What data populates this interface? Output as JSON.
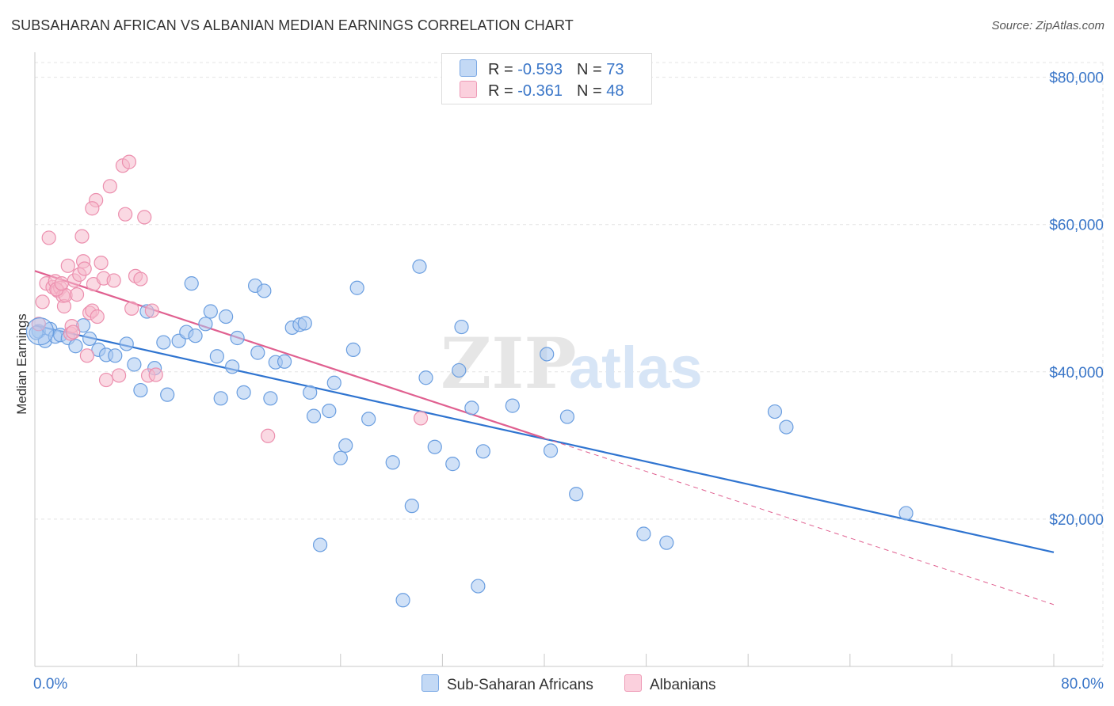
{
  "title": "SUBSAHARAN AFRICAN VS ALBANIAN MEDIAN EARNINGS CORRELATION CHART",
  "source": "Source: ZipAtlas.com",
  "watermark": {
    "zip": "ZIP",
    "atlas": "atlas"
  },
  "colors": {
    "blue_fill": "#a9c8f0",
    "blue_stroke": "#6a9ee0",
    "blue_line": "#2f74d0",
    "pink_fill": "#f6b9cc",
    "pink_stroke": "#ec8fae",
    "pink_line": "#e06090",
    "grid": "#e4e4e4",
    "axis_text": "#3a76c8"
  },
  "legend": {
    "rows": [
      {
        "r_label": "R = ",
        "r_value": "-0.593",
        "n_label": "N = ",
        "n_value": "73",
        "swatch": "blue"
      },
      {
        "r_label": "R = ",
        "r_value": "-0.361",
        "n_label": "N = ",
        "n_value": "48",
        "swatch": "pink"
      }
    ]
  },
  "bottom_legend": [
    "Sub-Saharan Africans",
    "Albanians"
  ],
  "chart_data": {
    "type": "scatter",
    "title": "SUBSAHARAN AFRICAN VS ALBANIAN MEDIAN EARNINGS CORRELATION CHART",
    "xlabel": "",
    "ylabel": "Median Earnings",
    "xlim": [
      0,
      80
    ],
    "ylim": [
      0,
      82000
    ],
    "x_tick_labels": [
      "0.0%",
      "80.0%"
    ],
    "y_ticks": [
      20000,
      40000,
      60000,
      80000
    ],
    "y_tick_labels": [
      "$20,000",
      "$40,000",
      "$60,000",
      "$80,000"
    ],
    "grid": true,
    "legend_placement": "top-center",
    "series": [
      {
        "name": "Sub-Saharan Africans",
        "color": "#6a9ee0",
        "r": -0.593,
        "n": 73,
        "trend": {
          "x": [
            0,
            80
          ],
          "y": [
            46300,
            15500
          ]
        },
        "points": [
          [
            0.3,
            45500
          ],
          [
            0.8,
            44200
          ],
          [
            1.2,
            45800
          ],
          [
            1.6,
            44800
          ],
          [
            2.0,
            45000
          ],
          [
            2.6,
            44600
          ],
          [
            3.2,
            43500
          ],
          [
            3.8,
            46300
          ],
          [
            4.3,
            44500
          ],
          [
            5.0,
            43000
          ],
          [
            5.6,
            42300
          ],
          [
            6.3,
            42200
          ],
          [
            7.2,
            43800
          ],
          [
            7.8,
            41000
          ],
          [
            8.3,
            37500
          ],
          [
            8.8,
            48200
          ],
          [
            9.4,
            40500
          ],
          [
            10.1,
            44000
          ],
          [
            10.4,
            36900
          ],
          [
            11.3,
            44200
          ],
          [
            11.9,
            45400
          ],
          [
            12.3,
            52000
          ],
          [
            12.6,
            44900
          ],
          [
            13.4,
            46500
          ],
          [
            13.8,
            48200
          ],
          [
            14.3,
            42100
          ],
          [
            14.6,
            36400
          ],
          [
            15.0,
            47500
          ],
          [
            15.5,
            40700
          ],
          [
            15.9,
            44600
          ],
          [
            16.4,
            37200
          ],
          [
            17.3,
            51700
          ],
          [
            17.5,
            42600
          ],
          [
            18.0,
            51000
          ],
          [
            18.5,
            36400
          ],
          [
            18.9,
            41300
          ],
          [
            19.6,
            41400
          ],
          [
            20.2,
            46000
          ],
          [
            20.8,
            46400
          ],
          [
            21.2,
            46600
          ],
          [
            21.6,
            37200
          ],
          [
            21.9,
            34000
          ],
          [
            22.4,
            16500
          ],
          [
            23.1,
            34700
          ],
          [
            23.5,
            38500
          ],
          [
            24.0,
            28300
          ],
          [
            24.4,
            30000
          ],
          [
            25.0,
            43000
          ],
          [
            25.3,
            51400
          ],
          [
            26.2,
            33600
          ],
          [
            28.1,
            27700
          ],
          [
            28.9,
            9000
          ],
          [
            29.6,
            21800
          ],
          [
            30.2,
            54300
          ],
          [
            30.7,
            39200
          ],
          [
            31.4,
            29800
          ],
          [
            32.8,
            27500
          ],
          [
            33.3,
            40200
          ],
          [
            33.5,
            46100
          ],
          [
            34.3,
            35100
          ],
          [
            34.8,
            10900
          ],
          [
            35.2,
            29200
          ],
          [
            37.5,
            35400
          ],
          [
            40.2,
            42400
          ],
          [
            40.5,
            29300
          ],
          [
            41.8,
            33900
          ],
          [
            42.5,
            23400
          ],
          [
            47.8,
            18000
          ],
          [
            49.6,
            16800
          ],
          [
            58.1,
            34600
          ],
          [
            59.0,
            32500
          ],
          [
            68.4,
            20800
          ],
          [
            0.1,
            45300
          ]
        ]
      },
      {
        "name": "Albanians",
        "color": "#ec8fae",
        "r": -0.361,
        "n": 48,
        "trend": {
          "x": [
            0,
            40
          ],
          "y": [
            53700,
            31000
          ]
        },
        "trend_extension": {
          "x": [
            40,
            80
          ],
          "y": [
            31000,
            8400
          ]
        },
        "points": [
          [
            0.3,
            46500
          ],
          [
            0.6,
            49500
          ],
          [
            0.9,
            52000
          ],
          [
            1.1,
            58200
          ],
          [
            1.4,
            51500
          ],
          [
            1.6,
            52300
          ],
          [
            1.8,
            51000
          ],
          [
            2.0,
            51400
          ],
          [
            2.2,
            50300
          ],
          [
            2.3,
            48900
          ],
          [
            2.4,
            50400
          ],
          [
            2.6,
            54400
          ],
          [
            2.8,
            45200
          ],
          [
            2.9,
            46200
          ],
          [
            3.1,
            52400
          ],
          [
            3.3,
            50500
          ],
          [
            3.5,
            53200
          ],
          [
            3.7,
            58400
          ],
          [
            3.8,
            55000
          ],
          [
            3.9,
            54000
          ],
          [
            4.1,
            42200
          ],
          [
            4.3,
            48000
          ],
          [
            4.5,
            48300
          ],
          [
            4.6,
            51900
          ],
          [
            4.8,
            63300
          ],
          [
            4.9,
            47500
          ],
          [
            4.5,
            62200
          ],
          [
            5.2,
            54800
          ],
          [
            5.4,
            52700
          ],
          [
            5.6,
            38900
          ],
          [
            5.9,
            65200
          ],
          [
            6.2,
            52400
          ],
          [
            6.6,
            39500
          ],
          [
            6.9,
            68000
          ],
          [
            7.1,
            61400
          ],
          [
            7.4,
            68500
          ],
          [
            7.6,
            48600
          ],
          [
            7.9,
            53000
          ],
          [
            8.3,
            52600
          ],
          [
            8.6,
            61000
          ],
          [
            8.9,
            39500
          ],
          [
            9.2,
            48300
          ],
          [
            9.5,
            39600
          ],
          [
            18.3,
            31300
          ],
          [
            30.3,
            33700
          ],
          [
            1.7,
            51200
          ],
          [
            2.1,
            52000
          ],
          [
            3.0,
            45400
          ]
        ]
      }
    ]
  }
}
